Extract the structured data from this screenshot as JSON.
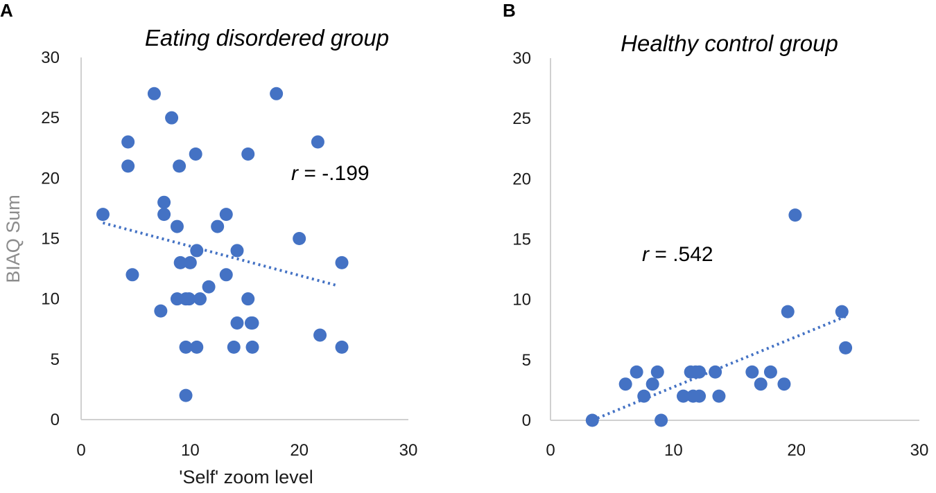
{
  "colors": {
    "marker": "#4472C4",
    "axis": "#d0d0d0"
  },
  "chart_data": [
    {
      "type": "scatter",
      "panel_label": "A",
      "title": "Eating disordered group",
      "xlabel": "'Self' zoom level",
      "ylabel": "BIAQ Sum",
      "xlim": [
        0,
        30
      ],
      "ylim": [
        0,
        30
      ],
      "xticks": [
        "0",
        "10",
        "20",
        "30"
      ],
      "yticks": [
        "0",
        "5",
        "10",
        "15",
        "20",
        "25",
        "30"
      ],
      "annotation": {
        "r_symbol": "r",
        "text": " = -.199"
      },
      "trendline": {
        "x": [
          2,
          23.5
        ],
        "y": [
          16.3,
          11.1
        ]
      },
      "points": {
        "x": [
          2.0,
          4.3,
          4.3,
          4.7,
          6.7,
          7.3,
          7.6,
          7.6,
          8.3,
          8.8,
          8.8,
          9.0,
          9.1,
          9.6,
          9.6,
          9.6,
          9.9,
          10.0,
          10.5,
          10.6,
          10.6,
          10.9,
          11.7,
          12.5,
          13.3,
          13.3,
          14.0,
          14.3,
          14.3,
          15.3,
          15.3,
          15.6,
          15.7,
          15.7,
          17.9,
          20.0,
          21.7,
          21.9,
          23.9,
          23.9
        ],
        "y": [
          17,
          23,
          21,
          12,
          27,
          9,
          18,
          17,
          25,
          16,
          10,
          21,
          13,
          10,
          6,
          2,
          10,
          13,
          22,
          14,
          6,
          10,
          11,
          16,
          17,
          12,
          6,
          14,
          8,
          22,
          10,
          8,
          8,
          6,
          27,
          15,
          23,
          7,
          13,
          6
        ]
      }
    },
    {
      "type": "scatter",
      "panel_label": "B",
      "title": "Healthy control group",
      "xlabel": "",
      "ylabel": "",
      "xlim": [
        0,
        30
      ],
      "ylim": [
        0,
        30
      ],
      "xticks": [
        "0",
        "10",
        "20",
        "30"
      ],
      "yticks": [
        "0",
        "5",
        "10",
        "15",
        "20",
        "25",
        "30"
      ],
      "annotation": {
        "r_symbol": "r",
        "text": " = .542"
      },
      "trendline": {
        "x": [
          3.4,
          24.0
        ],
        "y": [
          0.0,
          8.6
        ]
      },
      "points": {
        "x": [
          3.4,
          6.1,
          7.0,
          7.6,
          8.3,
          8.7,
          9.0,
          10.8,
          11.4,
          11.6,
          11.8,
          12.1,
          12.1,
          13.4,
          13.7,
          16.4,
          17.1,
          17.9,
          19.0,
          19.3,
          19.9,
          23.7,
          24.0
        ],
        "y": [
          0,
          3,
          4,
          2,
          3,
          4,
          0,
          2,
          4,
          2,
          4,
          2,
          4,
          4,
          2,
          4,
          3,
          4,
          3,
          9,
          17,
          9,
          6
        ]
      }
    }
  ]
}
